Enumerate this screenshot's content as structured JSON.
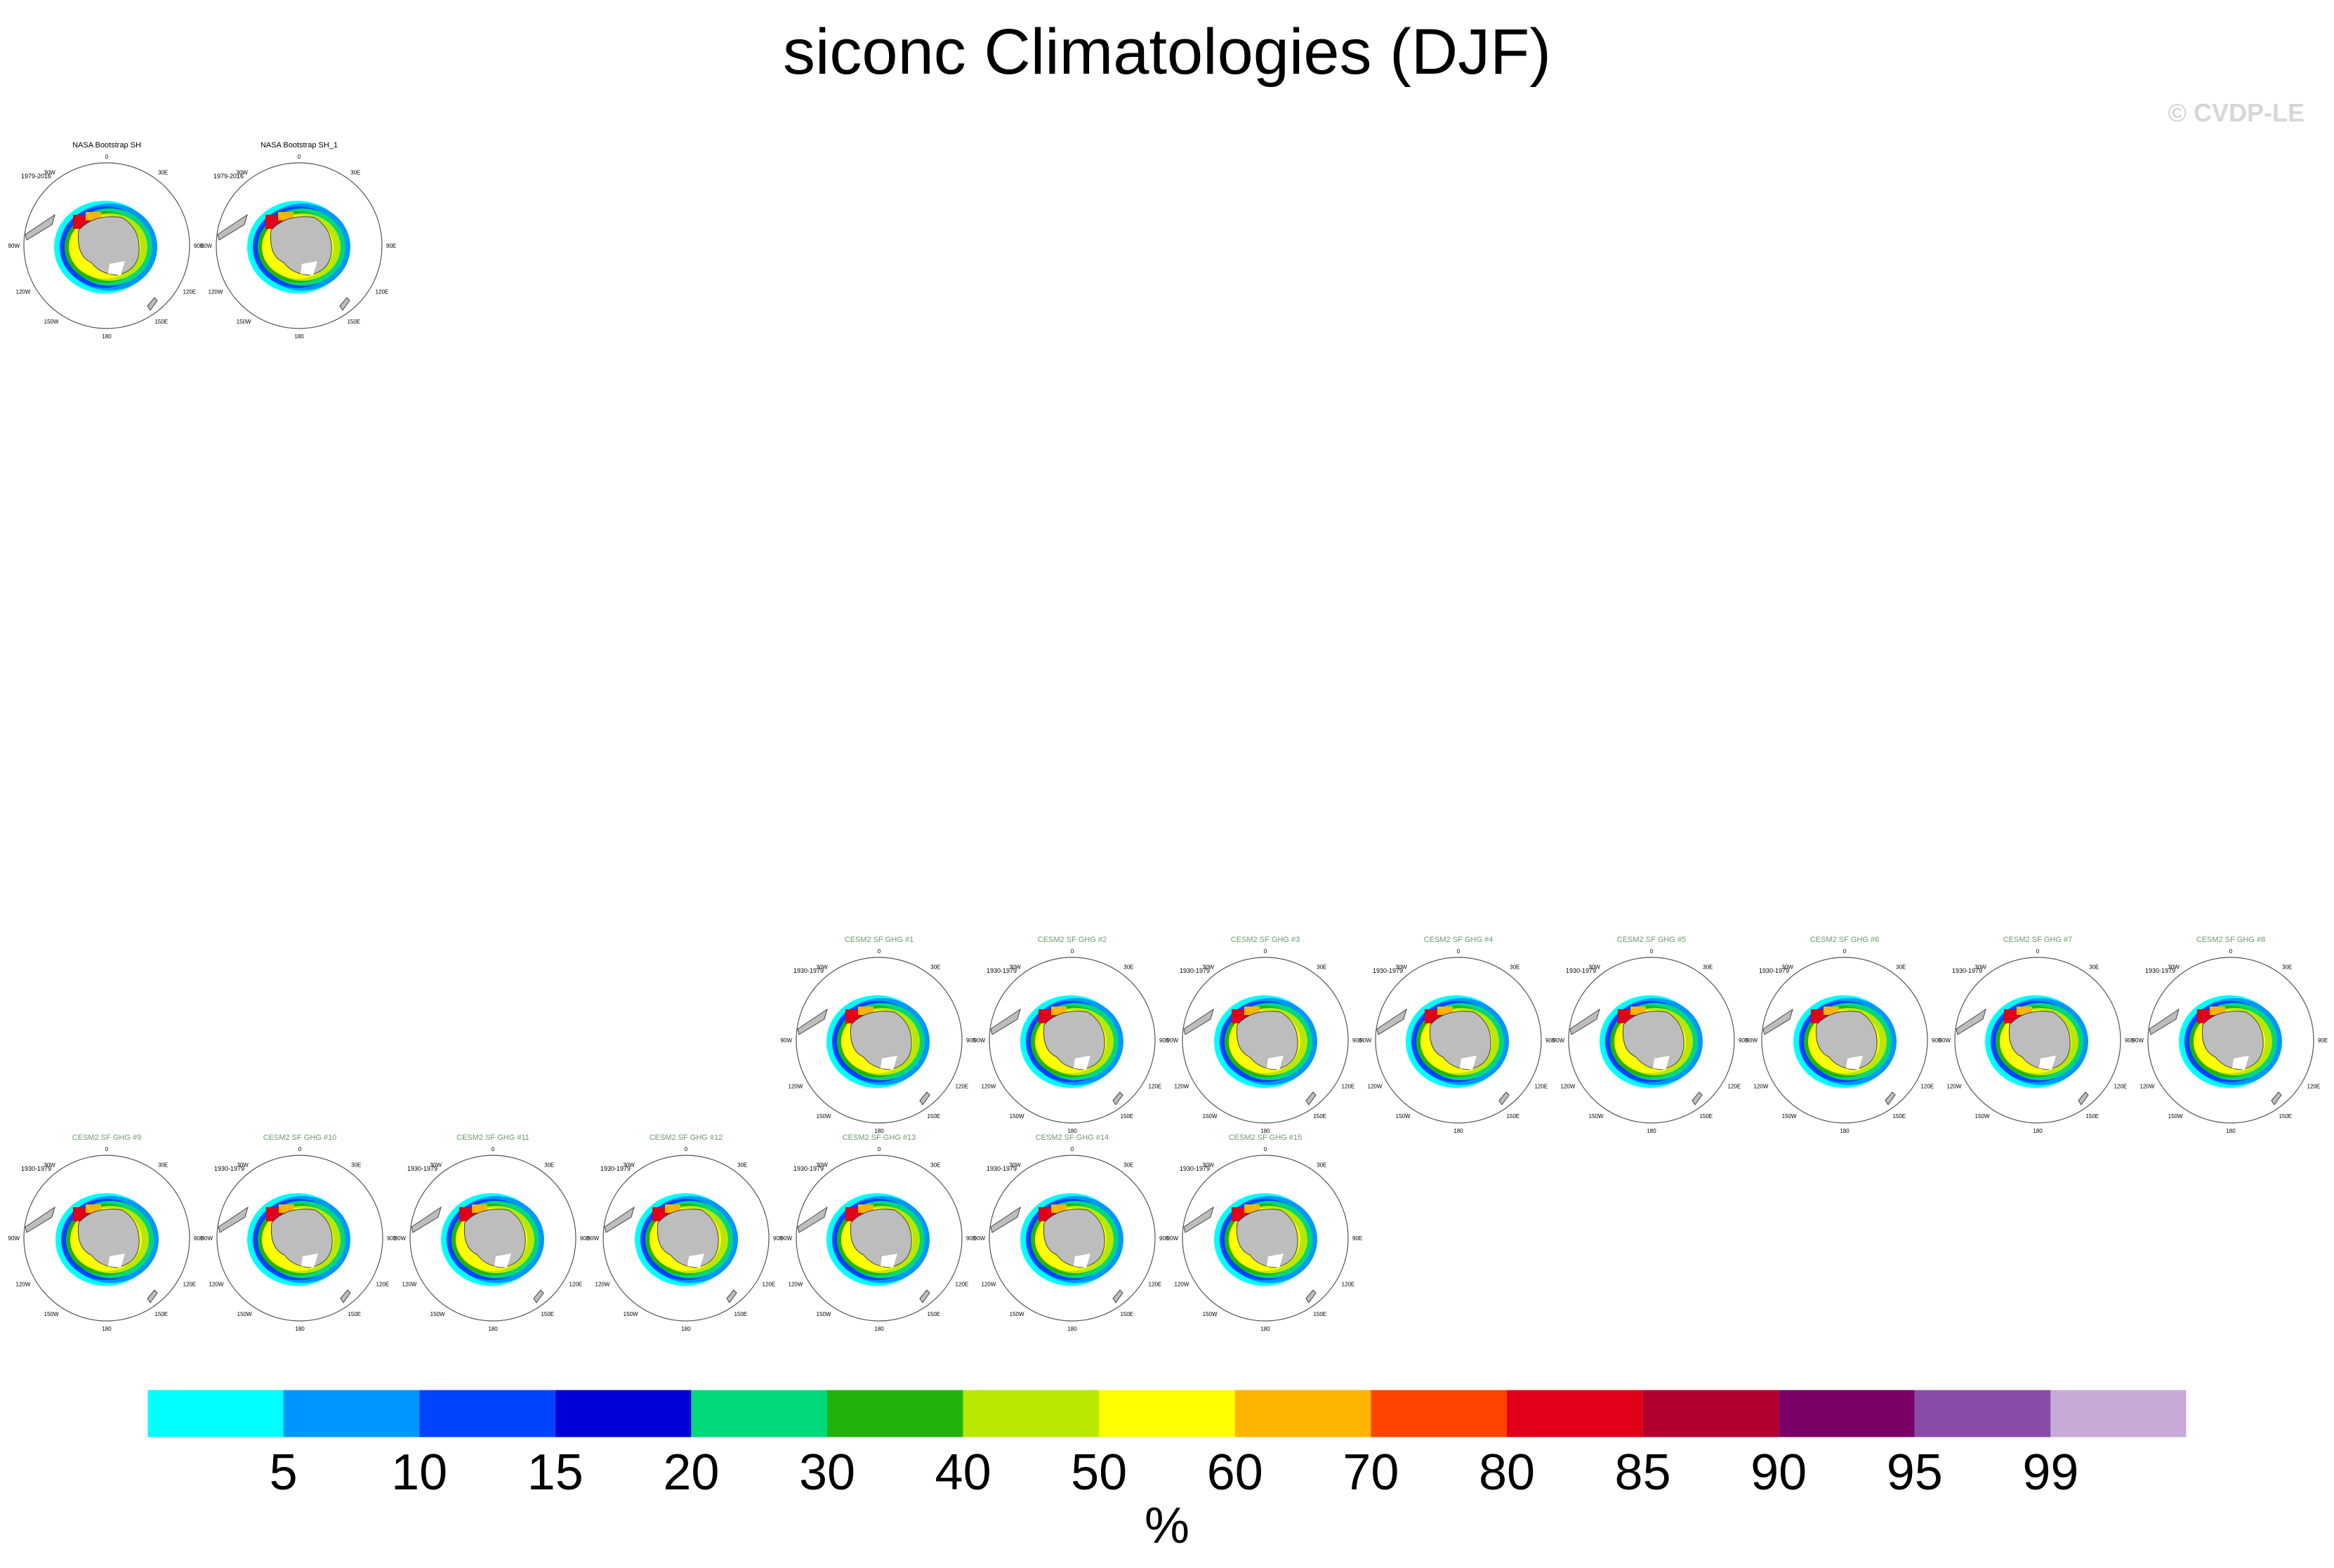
{
  "title": "siconc Climatologies (DJF)",
  "credit": "© CVDP-LE",
  "observations": [
    {
      "title": "NASA Bootstrap SH",
      "period": "1979-2016"
    },
    {
      "title": "NASA Bootstrap SH_1",
      "period": "1979-2016"
    }
  ],
  "ensemble": [
    {
      "title": "CESM2 SF GHG #1",
      "period": "1930-1979"
    },
    {
      "title": "CESM2 SF GHG #2",
      "period": "1930-1979"
    },
    {
      "title": "CESM2 SF GHG #3",
      "period": "1930-1979"
    },
    {
      "title": "CESM2 SF GHG #4",
      "period": "1930-1979"
    },
    {
      "title": "CESM2 SF GHG #5",
      "period": "1930-1979"
    },
    {
      "title": "CESM2 SF GHG #6",
      "period": "1930-1979"
    },
    {
      "title": "CESM2 SF GHG #7",
      "period": "1930-1979"
    },
    {
      "title": "CESM2 SF GHG #8",
      "period": "1930-1979"
    },
    {
      "title": "CESM2 SF GHG #9",
      "period": "1930-1979"
    },
    {
      "title": "CESM2 SF GHG #10",
      "period": "1930-1979"
    },
    {
      "title": "CESM2 SF GHG #11",
      "period": "1930-1979"
    },
    {
      "title": "CESM2 SF GHG #12",
      "period": "1930-1979"
    },
    {
      "title": "CESM2 SF GHG #13",
      "period": "1930-1979"
    },
    {
      "title": "CESM2 SF GHG #14",
      "period": "1930-1979"
    },
    {
      "title": "CESM2 SF GHG #15",
      "period": "1930-1979"
    }
  ],
  "map_labels": {
    "top": "0",
    "right": "90E",
    "left": "90W",
    "bottom": "180",
    "tl": "30W",
    "tr": "30E",
    "bl": "120W",
    "br": "120E",
    "bl2": "150W",
    "br2": "150E",
    "ml": "60W",
    "mr": "60E"
  },
  "colorbar": {
    "unit": "%",
    "ticks": [
      "5",
      "10",
      "15",
      "20",
      "30",
      "40",
      "50",
      "60",
      "70",
      "80",
      "85",
      "90",
      "95",
      "99"
    ],
    "colors": [
      "#00ffff",
      "#0096ff",
      "#0044ff",
      "#0000d8",
      "#00d87a",
      "#22b40c",
      "#b8e800",
      "#ffff00",
      "#ffb400",
      "#ff4400",
      "#e00018",
      "#b4002e",
      "#7a0066",
      "#8a4aaa",
      "#c8aad8"
    ]
  },
  "obs_title_color": "#000000",
  "model_title_color": "#6a9a6a"
}
